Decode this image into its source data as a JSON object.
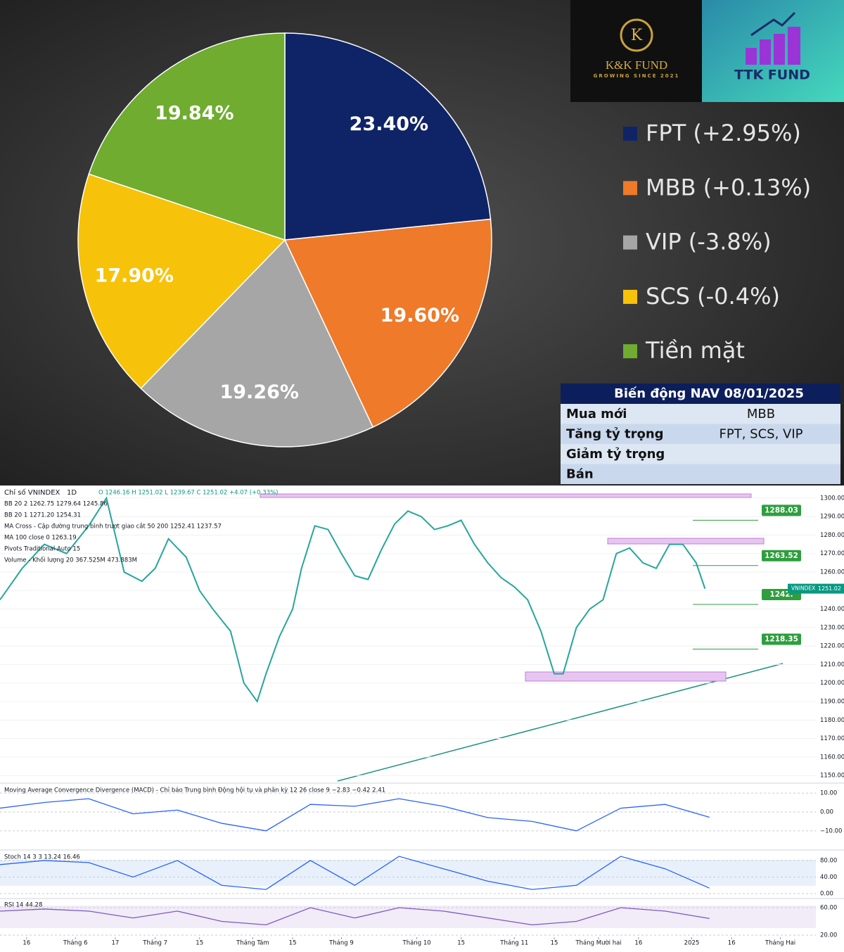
{
  "logos": {
    "kk_letter": "K",
    "kk_name": "K&K FUND",
    "kk_tagline": "GROWING SINCE 2021",
    "ttk_name": "TTK FUND"
  },
  "nav_table": {
    "title": "Biến động NAV 08/01/2025",
    "rows": [
      [
        "Mua mới",
        "MBB"
      ],
      [
        "Tăng tỷ trọng",
        "FPT, SCS, VIP"
      ],
      [
        "Giảm tỷ trọng"
      ],
      [
        "Bán"
      ]
    ]
  },
  "chart_data": [
    {
      "type": "pie",
      "categories": [
        "FPT (+2.95%)",
        "MBB (+0.13%)",
        "VIP (-3.8%)",
        "SCS (-0.4%)",
        "Tiền mặt"
      ],
      "values": [
        23.4,
        19.6,
        19.26,
        17.9,
        19.84
      ],
      "value_labels": [
        "23.40%",
        "19.60%",
        "19.26%",
        "17.90%",
        "19.84%"
      ],
      "colors": [
        "#0f2466",
        "#ee7a2a",
        "#a6a6a6",
        "#f7c20a",
        "#6fac2f"
      ]
    },
    {
      "type": "line",
      "title": "Chỉ số VNINDEX",
      "interval": "1D",
      "ohlc": "O 1246.16 H 1251.02 L 1239.67 C 1251.02 +4.07 (+0.33%)",
      "indicators": [
        "BB 20 2  1262.75  1279.64  1245.86",
        "BB 20 1  1271.20  1254.31",
        "MA Cross - Cập đường trung bình trượt giao cắt 50 200  1252.41  1237.57",
        "MA 100 close 0  1263.19",
        "Pivots Traditional Auto 15",
        "Volume - Khối lượng 20  367.525M  473.883M"
      ],
      "x": [
        0,
        5,
        10,
        15,
        20,
        24,
        28,
        32,
        35,
        38,
        42,
        45,
        48,
        52,
        55,
        58,
        60,
        63,
        66,
        68,
        71,
        74,
        77,
        80,
        83,
        86,
        89,
        92,
        95,
        98,
        101,
        104,
        107,
        110,
        113,
        116,
        119,
        122,
        125,
        127,
        130,
        133,
        136,
        139,
        142,
        145,
        148,
        151,
        154,
        157,
        159
      ],
      "values": [
        1245,
        1262,
        1275,
        1270,
        1285,
        1300,
        1260,
        1255,
        1262,
        1278,
        1268,
        1250,
        1240,
        1228,
        1200,
        1190,
        1205,
        1225,
        1240,
        1262,
        1285,
        1283,
        1270,
        1258,
        1256,
        1272,
        1286,
        1293,
        1290,
        1283,
        1285,
        1288,
        1275,
        1265,
        1257,
        1252,
        1245,
        1228,
        1205,
        1205,
        1230,
        1240,
        1245,
        1270,
        1273,
        1265,
        1262,
        1275,
        1275,
        1265,
        1251.02
      ],
      "color": "#26a69a",
      "xlim": [
        0,
        184
      ],
      "xticks": [
        {
          "value": 6,
          "label": "16"
        },
        {
          "value": 17,
          "label": "Tháng 6"
        },
        {
          "value": 26,
          "label": "17"
        },
        {
          "value": 35,
          "label": "Tháng 7"
        },
        {
          "value": 45,
          "label": "15"
        },
        {
          "value": 57,
          "label": "Tháng Tám"
        },
        {
          "value": 66,
          "label": "15"
        },
        {
          "value": 77,
          "label": "Tháng 9"
        },
        {
          "value": 94,
          "label": "Tháng 10"
        },
        {
          "value": 104,
          "label": "15"
        },
        {
          "value": 116,
          "label": "Tháng 11"
        },
        {
          "value": 125,
          "label": "15"
        },
        {
          "value": 135,
          "label": "Tháng Mười hai"
        },
        {
          "value": 144,
          "label": "16"
        },
        {
          "value": 156,
          "label": "2025"
        },
        {
          "value": 165,
          "label": "16"
        },
        {
          "value": 176,
          "label": "Tháng Hai"
        }
      ],
      "ylim": [
        1147,
        1303
      ],
      "yticks": [
        {
          "value": 1150,
          "label": "1150.00"
        },
        {
          "value": 1160,
          "label": "1160.00"
        },
        {
          "value": 1170,
          "label": "1170.00"
        },
        {
          "value": 1180,
          "label": "1180.00"
        },
        {
          "value": 1190,
          "label": "1190.00"
        },
        {
          "value": 1200,
          "label": "1200.00"
        },
        {
          "value": 1210,
          "label": "1210.00"
        },
        {
          "value": 1220,
          "label": "1220.00"
        },
        {
          "value": 1230,
          "label": "1230.00"
        },
        {
          "value": 1240,
          "label": "1240.00"
        },
        {
          "value": 1250,
          "label": "1250.00"
        },
        {
          "value": 1260,
          "label": "1260.00"
        },
        {
          "value": 1270,
          "label": "1270.00"
        },
        {
          "value": 1280,
          "label": "1280.00"
        },
        {
          "value": 1290,
          "label": "1290.00"
        },
        {
          "value": 1300,
          "label": "1300.00"
        }
      ],
      "levels": [
        1288.03,
        1263.52,
        1242.5,
        1218.35
      ],
      "level_labels": [
        "1288.03",
        "1263.52",
        "1242.",
        "1218.35"
      ],
      "last_name": "VNINDEX",
      "last_price": 1251.02,
      "grid": true
    },
    {
      "type": "line",
      "title": "Moving Average Convergence Divergence (MACD) - Chỉ báo Trung bình Động hội tụ và phân kỳ 12 26 close 9  −2.83  −0.42  2.41",
      "x": [
        0,
        10,
        20,
        30,
        40,
        50,
        60,
        70,
        80,
        90,
        100,
        110,
        120,
        130,
        140,
        150,
        160
      ],
      "values": [
        2,
        5,
        7,
        -1,
        1,
        -6,
        -10,
        4,
        3,
        7,
        3,
        -3,
        -5,
        -10,
        2,
        4,
        -2.83
      ],
      "color": "#2962ff",
      "xlim": [
        0,
        184
      ],
      "ylim": [
        -19,
        14.5
      ],
      "yticks": [
        {
          "value": 10,
          "label": "10.00"
        },
        {
          "value": 0,
          "label": "0.00"
        },
        {
          "value": -10,
          "label": "−10.00"
        }
      ]
    },
    {
      "type": "line",
      "title": "Stoch 14 3 3  13.24  16.46",
      "x": [
        0,
        10,
        20,
        30,
        40,
        50,
        60,
        70,
        80,
        90,
        100,
        110,
        120,
        130,
        140,
        150,
        160
      ],
      "values": [
        70,
        80,
        75,
        40,
        80,
        20,
        10,
        80,
        20,
        90,
        60,
        30,
        10,
        20,
        90,
        60,
        13.24
      ],
      "color": "#2962ff",
      "xlim": [
        0,
        184
      ],
      "ylim": [
        -8.5,
        102
      ],
      "yticks": [
        {
          "value": 80,
          "label": "80.00"
        },
        {
          "value": 40,
          "label": "40.00"
        },
        {
          "value": 0,
          "label": "0.00"
        }
      ]
    },
    {
      "type": "line",
      "title": "RSI 14  44.28",
      "x": [
        0,
        10,
        20,
        30,
        40,
        50,
        60,
        70,
        80,
        90,
        100,
        110,
        120,
        130,
        140,
        150,
        160
      ],
      "values": [
        55,
        58,
        55,
        45,
        55,
        40,
        35,
        60,
        45,
        60,
        55,
        45,
        35,
        40,
        60,
        55,
        44.28
      ],
      "color": "#7e57c2",
      "xlim": [
        0,
        184
      ],
      "ylim": [
        19,
        72.3
      ],
      "yticks": [
        {
          "value": 60,
          "label": "60.00"
        },
        {
          "value": 20,
          "label": "20.00"
        }
      ]
    }
  ]
}
